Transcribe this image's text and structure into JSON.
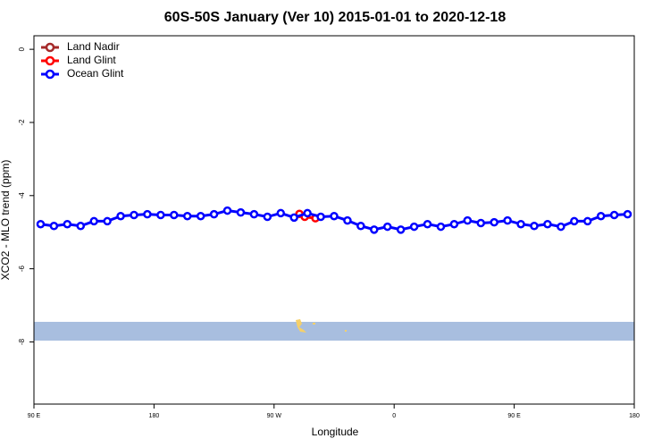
{
  "chart_data": {
    "type": "line",
    "title": "60S-50S January (Ver 10)   2015-01-01 to 2020-12-18",
    "x_label": "Longitude",
    "y_label": "XCO2 - MLO trend (ppm)",
    "xlim": [
      90,
      540
    ],
    "ylim": [
      -9.7,
      0.37
    ],
    "xticks": [
      {
        "value": 90,
        "label": "90 E"
      },
      180,
      {
        "value": 270,
        "label": "90 W"
      },
      {
        "value": 360,
        "label": "0"
      },
      {
        "value": 450,
        "label": "90 E"
      },
      {
        "value": 540,
        "label": "180"
      }
    ],
    "yticks": [
      0,
      -2,
      -4,
      -6,
      -8
    ],
    "legend": "top-left",
    "series": [
      {
        "name": "Land Nadir",
        "color": "#a52a2a",
        "x": [],
        "values": []
      },
      {
        "name": "Land Glint",
        "color": "#ff0000",
        "x": [
          289,
          293,
          301
        ],
        "values": [
          -4.5,
          -4.58,
          -4.62
        ]
      },
      {
        "name": "Ocean Glint",
        "color": "#0000ff",
        "x": [
          95,
          105,
          115,
          125,
          135,
          145,
          155,
          165,
          175,
          185,
          195,
          205,
          215,
          225,
          235,
          245,
          255,
          265,
          275,
          285,
          295,
          305,
          315,
          325,
          335,
          345,
          355,
          365,
          375,
          385,
          395,
          405,
          415,
          425,
          435,
          445,
          455,
          465,
          475,
          485,
          495,
          505,
          515,
          525,
          535
        ],
        "values": [
          -4.78,
          -4.83,
          -4.78,
          -4.83,
          -4.7,
          -4.7,
          -4.56,
          -4.53,
          -4.51,
          -4.53,
          -4.53,
          -4.56,
          -4.56,
          -4.51,
          -4.41,
          -4.46,
          -4.51,
          -4.58,
          -4.48,
          -4.6,
          -4.48,
          -4.58,
          -4.56,
          -4.68,
          -4.83,
          -4.93,
          -4.85,
          -4.93,
          -4.85,
          -4.78,
          -4.85,
          -4.78,
          -4.68,
          -4.75,
          -4.73,
          -4.68,
          -4.78,
          -4.83,
          -4.78,
          -4.85,
          -4.7,
          -4.7,
          -4.56,
          -4.53,
          -4.51
        ]
      }
    ]
  }
}
